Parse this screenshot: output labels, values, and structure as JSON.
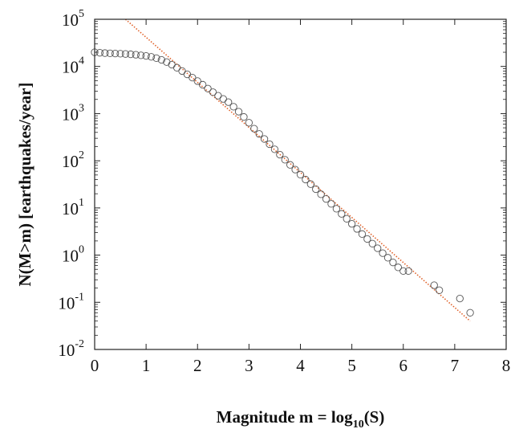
{
  "chart_data": {
    "type": "scatter",
    "title": "",
    "xlabel": "Magnitude m = log",
    "xlabel_sub": "10",
    "xlabel_suffix": "(S)",
    "ylabel": "N(M>m) [earthquakes/year]",
    "xlim": [
      0,
      8
    ],
    "ylim": [
      0.01,
      100000
    ],
    "y_scale": "log",
    "grid": false,
    "x_ticks": [
      "0",
      "1",
      "2",
      "3",
      "4",
      "5",
      "6",
      "7",
      "8"
    ],
    "y_ticks": [
      {
        "base": "10",
        "exp": "-2"
      },
      {
        "base": "10",
        "exp": "-1"
      },
      {
        "base": "10",
        "exp": "0"
      },
      {
        "base": "10",
        "exp": "1"
      },
      {
        "base": "10",
        "exp": "2"
      },
      {
        "base": "10",
        "exp": "3"
      },
      {
        "base": "10",
        "exp": "4"
      },
      {
        "base": "10",
        "exp": "5"
      }
    ],
    "series": [
      {
        "kind": "points",
        "marker": "open-circle",
        "color": "#555555",
        "points": [
          [
            0.0,
            20000
          ],
          [
            0.1,
            19500
          ],
          [
            0.2,
            19200
          ],
          [
            0.3,
            19000
          ],
          [
            0.4,
            18800
          ],
          [
            0.5,
            18600
          ],
          [
            0.6,
            18400
          ],
          [
            0.7,
            18100
          ],
          [
            0.8,
            17700
          ],
          [
            0.9,
            17200
          ],
          [
            1.0,
            16700
          ],
          [
            1.1,
            16000
          ],
          [
            1.2,
            15000
          ],
          [
            1.3,
            13800
          ],
          [
            1.4,
            12400
          ],
          [
            1.5,
            10900
          ],
          [
            1.6,
            9400
          ],
          [
            1.7,
            8000
          ],
          [
            1.8,
            6800
          ],
          [
            1.9,
            5800
          ],
          [
            2.0,
            4900
          ],
          [
            2.1,
            4100
          ],
          [
            2.2,
            3400
          ],
          [
            2.3,
            2850
          ],
          [
            2.4,
            2400
          ],
          [
            2.5,
            2050
          ],
          [
            2.6,
            1750
          ],
          [
            2.7,
            1400
          ],
          [
            2.8,
            1100
          ],
          [
            2.9,
            850
          ],
          [
            3.0,
            640
          ],
          [
            3.1,
            480
          ],
          [
            3.2,
            370
          ],
          [
            3.3,
            290
          ],
          [
            3.4,
            225
          ],
          [
            3.5,
            175
          ],
          [
            3.6,
            135
          ],
          [
            3.7,
            105
          ],
          [
            3.8,
            82
          ],
          [
            3.9,
            65
          ],
          [
            4.0,
            51
          ],
          [
            4.1,
            40
          ],
          [
            4.2,
            32
          ],
          [
            4.3,
            25
          ],
          [
            4.4,
            19.5
          ],
          [
            4.5,
            15.5
          ],
          [
            4.6,
            12.2
          ],
          [
            4.7,
            9.6
          ],
          [
            4.8,
            7.5
          ],
          [
            4.9,
            5.9
          ],
          [
            5.0,
            4.6
          ],
          [
            5.1,
            3.6
          ],
          [
            5.2,
            2.8
          ],
          [
            5.3,
            2.2
          ],
          [
            5.4,
            1.75
          ],
          [
            5.5,
            1.4
          ],
          [
            5.6,
            1.1
          ],
          [
            5.7,
            0.88
          ],
          [
            5.8,
            0.7
          ],
          [
            5.9,
            0.55
          ],
          [
            6.0,
            0.46
          ],
          [
            6.1,
            0.46
          ],
          [
            6.6,
            0.23
          ],
          [
            6.7,
            0.18
          ],
          [
            7.1,
            0.12
          ],
          [
            7.3,
            0.06
          ]
        ]
      },
      {
        "kind": "fit-line",
        "color": "#e0622a",
        "style": "dotted",
        "points": [
          [
            0.6,
            100000
          ],
          [
            7.3,
            0.04
          ]
        ]
      }
    ]
  }
}
